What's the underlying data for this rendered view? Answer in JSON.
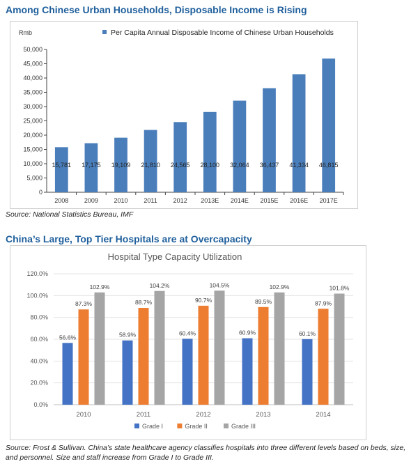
{
  "section1": {
    "title": "Among Chinese Urban Households, Disposable Income is Rising",
    "source": "Source: National Statistics Bureau, IMF"
  },
  "section2": {
    "title": "China’s Large, Top Tier Hospitals are at Overcapacity",
    "source": "Source: Frost & Sullivan. China’s state healthcare agency classifies hospitals into three different levels based on beds, size, and personnel. Size and staff increase from Grade I to Grade III."
  },
  "chart_data": [
    {
      "type": "bar",
      "title": "",
      "ylabel": "Rmb",
      "xlabel": "",
      "categories": [
        "2008",
        "2009",
        "2010",
        "2011",
        "2012",
        "2013E",
        "2014E",
        "2015E",
        "2016E",
        "2017E"
      ],
      "series": [
        {
          "name": "Per Capita  Annual Disposable Income of Chinese Urban Households",
          "values": [
            15781,
            17175,
            19109,
            21810,
            24565,
            28100,
            32064,
            36437,
            41334,
            46815
          ],
          "labels": [
            "15,781",
            "17,175",
            "19,109",
            "21,810",
            "24,565",
            "28,100",
            "32,064",
            "36,437",
            "41,334",
            "46,815"
          ]
        }
      ],
      "ylim": [
        0,
        50000
      ],
      "yticks": [
        0,
        5000,
        10000,
        15000,
        20000,
        25000,
        30000,
        35000,
        40000,
        45000,
        50000
      ],
      "ytick_labels": [
        "0",
        "5,000",
        "10,000",
        "15,000",
        "20,000",
        "25,000",
        "30,000",
        "35,000",
        "40,000",
        "45,000",
        "50,000"
      ],
      "grid": false,
      "legend_position": "top",
      "colors": {
        "bar": "#4a7ebb"
      }
    },
    {
      "type": "bar",
      "title": "Hospital Type Capacity Utilization",
      "xlabel": "",
      "ylabel": "",
      "categories": [
        "2010",
        "2011",
        "2012",
        "2013",
        "2014"
      ],
      "series": [
        {
          "name": "Grade I",
          "values": [
            56.6,
            58.9,
            60.4,
            60.9,
            60.1
          ],
          "labels": [
            "56.6%",
            "58.9%",
            "60.4%",
            "60.9%",
            "60.1%"
          ],
          "color": "#4472c4"
        },
        {
          "name": "Grade II",
          "values": [
            87.3,
            88.7,
            90.7,
            89.5,
            87.9
          ],
          "labels": [
            "87.3%",
            "88.7%",
            "90.7%",
            "89.5%",
            "87.9%"
          ],
          "color": "#ed7d31"
        },
        {
          "name": "Grade III",
          "values": [
            102.9,
            104.2,
            104.5,
            102.9,
            101.8
          ],
          "labels": [
            "102.9%",
            "104.2%",
            "104.5%",
            "102.9%",
            "101.8%"
          ],
          "color": "#a5a5a5"
        }
      ],
      "ylim": [
        0,
        120
      ],
      "yticks": [
        0,
        20,
        40,
        60,
        80,
        100,
        120
      ],
      "ytick_labels": [
        "0.0%",
        "20.0%",
        "40.0%",
        "60.0%",
        "80.0%",
        "100.0%",
        "120.0%"
      ],
      "grid": true,
      "legend_position": "bottom"
    }
  ]
}
